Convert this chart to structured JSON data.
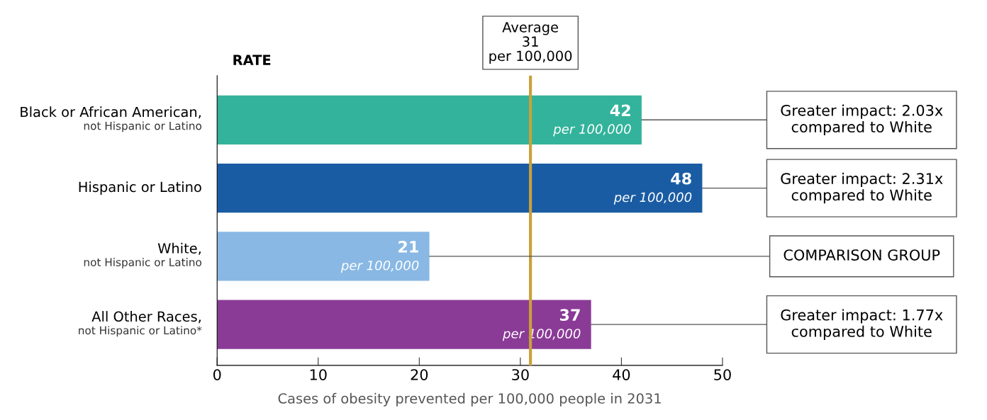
{
  "chart_data": {
    "type": "bar",
    "orientation": "horizontal",
    "ylabel": "RATE",
    "xlabel": "Cases of obesity prevented per 100,000 people in 2031",
    "categories": [
      "Black or African American,\nnot Hispanic or Latino",
      "Hispanic or Latino",
      "White,\nnot Hispanic or Latino",
      "All Other Races,\nnot Hispanic or Latino*"
    ],
    "values": [
      42,
      48,
      21,
      37
    ],
    "colors": [
      "#33b39b",
      "#1a5ca3",
      "#89b8e4",
      "#8a3b96"
    ],
    "value_labels": [
      "42\nper 100,000",
      "48\nper 100,000",
      "21\nper 100,000",
      "37\nper 100,000"
    ],
    "xlim": [
      0,
      50
    ],
    "xticks": [
      0,
      10,
      20,
      30,
      40,
      50
    ],
    "ref_lines": [
      {
        "axis": "x",
        "value": 31,
        "label": "Average\n31\nper 100,000",
        "color": "#c9a13a"
      }
    ],
    "annotations": [
      {
        "text": "Greater impact: 2.03x\ncompared to White",
        "x": 42,
        "y": "Black or African American,\nnot Hispanic or Latino"
      },
      {
        "text": "Greater impact: 2.31x\ncompared to White",
        "x": 48,
        "y": "Hispanic or Latino"
      },
      {
        "text": "COMPARISON GROUP",
        "x": 21,
        "y": "White,\nnot Hispanic or Latino"
      },
      {
        "text": "Greater impact: 1.77x\ncompared to White",
        "x": 37,
        "y": "All Other Races,\nnot Hispanic or Latino*"
      }
    ],
    "grid": false,
    "legend": false
  }
}
